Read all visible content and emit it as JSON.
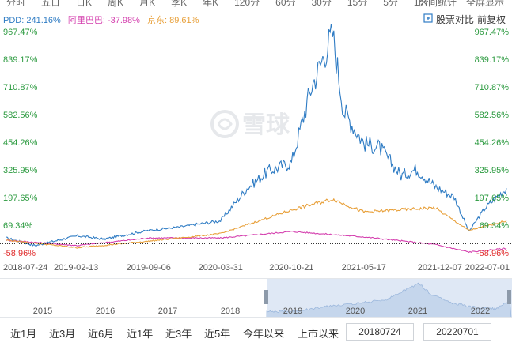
{
  "tabs": [
    "分时",
    "五日",
    "日K",
    "周K",
    "月K",
    "季K",
    "年K",
    "120分",
    "60分",
    "30分",
    "15分",
    "5分",
    "1分"
  ],
  "top_right": [
    "区间统计",
    "全屏显示"
  ],
  "legend": {
    "pdd": "PDD: 241.16%",
    "baba": "阿里巴巴: -37.98%",
    "jd": "京东: 89.61%"
  },
  "controls": {
    "compare": "股票对比",
    "adjust": "前复权"
  },
  "watermark": "雪球",
  "colors": {
    "pdd": "#2f7cc4",
    "baba": "#d43fae",
    "jd": "#e8a03a",
    "pos": "#2b9a3f",
    "neg": "#e02b2b"
  },
  "chart_data": {
    "type": "line",
    "y_tick_labels": [
      "967.47%",
      "839.17%",
      "710.87%",
      "582.56%",
      "454.26%",
      "325.95%",
      "197.65%",
      "69.34%",
      "-58.96%"
    ],
    "y_values": [
      967.47,
      839.17,
      710.87,
      582.56,
      454.26,
      325.95,
      197.65,
      69.34,
      -58.96
    ],
    "x_tick_labels": [
      "2018-07-24",
      "2019-02-13",
      "2019-09-06",
      "2020-03-31",
      "2020-10-21",
      "2021-05-17",
      "2021-12-07",
      "2022-07-01"
    ],
    "ylim": [
      -58.96,
      967.47
    ],
    "series": [
      {
        "name": "PDD",
        "color": "#2f7cc4",
        "x": [
          "2018-07-24",
          "2018-10-15",
          "2019-02-13",
          "2019-05-01",
          "2019-09-06",
          "2019-12-01",
          "2020-03-31",
          "2020-06-15",
          "2020-08-15",
          "2020-10-21",
          "2020-12-15",
          "2021-02-16",
          "2021-03-20",
          "2021-05-17",
          "2021-07-01",
          "2021-09-01",
          "2021-10-15",
          "2021-12-07",
          "2022-02-01",
          "2022-03-15",
          "2022-05-01",
          "2022-07-01"
        ],
        "values": [
          10,
          -25,
          20,
          5,
          45,
          60,
          90,
          240,
          320,
          360,
          700,
          960,
          600,
          450,
          430,
          300,
          330,
          250,
          200,
          40,
          150,
          241
        ]
      },
      {
        "name": "阿里巴巴",
        "color": "#d43fae",
        "x": [
          "2018-07-24",
          "2019-02-13",
          "2019-09-06",
          "2020-03-31",
          "2020-10-21",
          "2021-05-17",
          "2021-12-07",
          "2022-03-15",
          "2022-07-01"
        ],
        "values": [
          0,
          -25,
          10,
          10,
          40,
          15,
          -20,
          -55,
          -38
        ]
      },
      {
        "name": "京东",
        "color": "#e8a03a",
        "x": [
          "2018-07-24",
          "2019-02-13",
          "2019-09-06",
          "2020-03-31",
          "2020-10-21",
          "2021-02-16",
          "2021-05-17",
          "2021-12-07",
          "2022-03-15",
          "2022-07-01"
        ],
        "values": [
          0,
          -35,
          -5,
          30,
          140,
          190,
          130,
          150,
          45,
          90
        ]
      }
    ],
    "grid": false
  },
  "navigator": {
    "years": [
      "2015",
      "2016",
      "2017",
      "2018",
      "2019",
      "2020",
      "2021",
      "2022"
    ]
  },
  "range_buttons": [
    "近1月",
    "近3月",
    "近6月",
    "近1年",
    "近3年",
    "近5年",
    "今年以来",
    "上市以来"
  ],
  "start_date": "20180724",
  "end_date": "20220701"
}
